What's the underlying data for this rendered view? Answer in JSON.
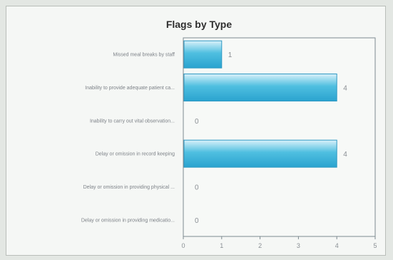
{
  "chart_data": {
    "type": "bar",
    "orientation": "horizontal",
    "title": "Flags by Type",
    "categories": [
      "Missed meal breaks by staff",
      "Inability to provide adequate patient ca...",
      "Inability to carry out vital observation...",
      "Delay or omission in record keeping",
      "Delay or omission in providing physical ...",
      "Delay or omission in providing medicatio..."
    ],
    "values": [
      1,
      4,
      0,
      4,
      0,
      0
    ],
    "value_labels": [
      "1",
      "4",
      "0",
      "4",
      "0",
      "0"
    ],
    "xlim": [
      0,
      5
    ],
    "xticks": [
      0,
      1,
      2,
      3,
      4,
      5
    ],
    "xtick_labels": [
      "0",
      "1",
      "2",
      "3",
      "4",
      "5"
    ],
    "grid": false,
    "legend": "none",
    "colors": {
      "bar_top": "#d9f1fa",
      "bar_mid": "#4fbfe0",
      "bar_bottom": "#2aa3cf",
      "bar_stroke": "#2f9ac4"
    }
  }
}
